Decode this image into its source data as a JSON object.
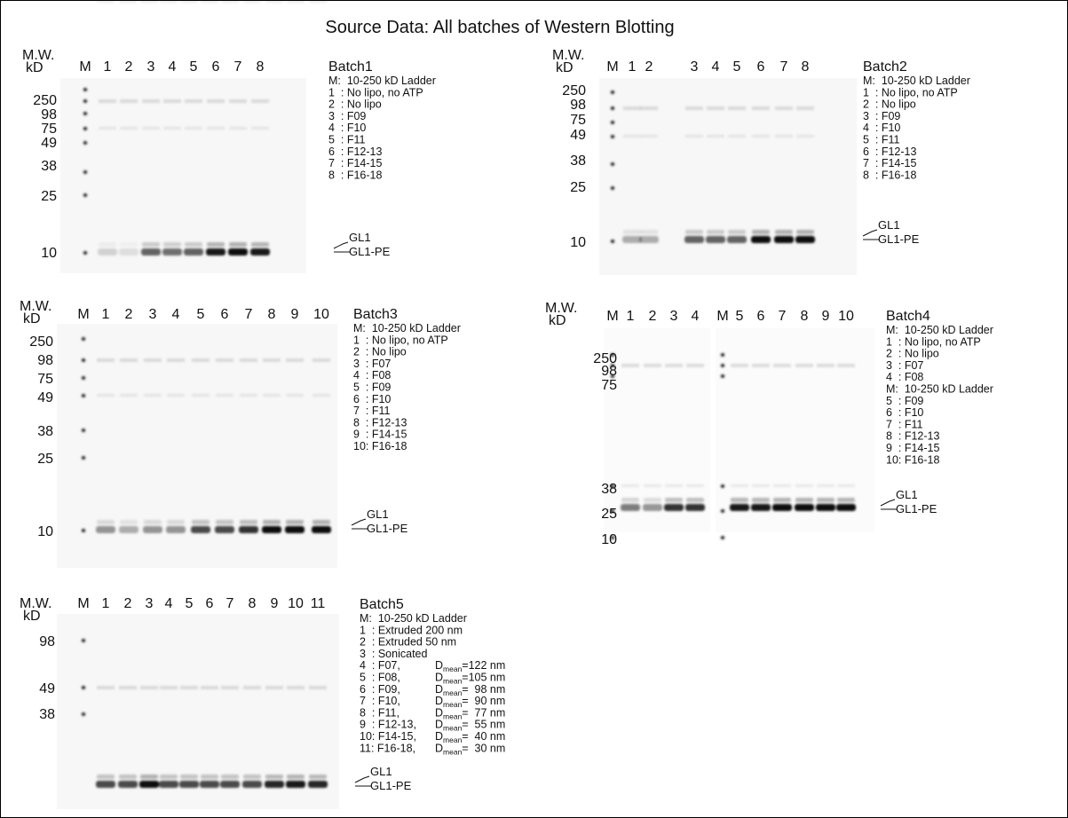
{
  "title": "Source Data: All batches of Western Blotting",
  "panels": [
    {
      "mw_header": [
        "M.W.",
        "kD"
      ],
      "lanes": [
        "M",
        "1",
        "2",
        "3",
        "4",
        "5",
        "6",
        "7",
        "8"
      ],
      "mw_markers": [
        "250",
        "98",
        "75",
        "49",
        "38",
        "25",
        "10"
      ],
      "batch": "Batch1",
      "legend": [
        "M:  10-250 kD Ladder",
        "1  : No lipo, no ATP",
        "2  : No lipo",
        "3  : F09",
        "4  : F10",
        "5  : F11",
        "6  : F12-13",
        "7  : F14-15",
        "8  : F16-18"
      ],
      "bands": [
        "GL1",
        "GL1-PE"
      ]
    },
    {
      "mw_header": [
        "M.W.",
        "kD"
      ],
      "lanes": [
        "M",
        "1",
        "2",
        "3",
        "4",
        "5",
        "6",
        "7",
        "8"
      ],
      "mw_markers": [
        "250",
        "98",
        "75",
        "49",
        "38",
        "25",
        "10"
      ],
      "batch": "Batch2",
      "legend": [
        "M:  10-250 kD Ladder",
        "1  : No lipo, no ATP",
        "2  : No lipo",
        "3  : F09",
        "4  : F10",
        "5  : F11",
        "6  : F12-13",
        "7  : F14-15",
        "8  : F16-18"
      ],
      "bands": [
        "GL1",
        "GL1-PE"
      ]
    },
    {
      "mw_header": [
        "M.W.",
        "kD"
      ],
      "lanes": [
        "M",
        "1",
        "2",
        "3",
        "4",
        "5",
        "6",
        "7",
        "8",
        "9",
        "10"
      ],
      "mw_markers": [
        "250",
        "98",
        "75",
        "49",
        "38",
        "25",
        "10"
      ],
      "batch": "Batch3",
      "legend": [
        "M:  10-250 kD Ladder",
        "1  : No lipo, no ATP",
        "2  : No lipo",
        "3  : F07",
        "4  : F08",
        "5  : F09",
        "6  : F10",
        "7  : F11",
        "8  : F12-13",
        "9  : F14-15",
        "10: F16-18"
      ],
      "bands": [
        "GL1",
        "GL1-PE"
      ]
    },
    {
      "mw_header": [
        "M.W.",
        "kD"
      ],
      "lanes": [
        "M",
        "1",
        "2",
        "3",
        "4",
        "M",
        "5",
        "6",
        "7",
        "8",
        "9",
        "10"
      ],
      "mw_markers": [
        "250",
        "98",
        "75",
        "38",
        "25",
        "10"
      ],
      "batch": "Batch4",
      "legend": [
        "M:  10-250 kD Ladder",
        "1  : No lipo, no ATP",
        "2  : No lipo",
        "3  : F07",
        "4  : F08",
        "M:  10-250 kD Ladder",
        "5  : F09",
        "6  : F10",
        "7  : F11",
        "8  : F12-13",
        "9  : F14-15",
        "10: F16-18"
      ],
      "bands": [
        "GL1",
        "GL1-PE"
      ]
    },
    {
      "mw_header": [
        "M.W.",
        "kD"
      ],
      "lanes": [
        "M",
        "1",
        "2",
        "3",
        "4",
        "5",
        "6",
        "7",
        "8",
        "9",
        "10",
        "11"
      ],
      "mw_markers": [
        "98",
        "49",
        "38"
      ],
      "batch": "Batch5",
      "legend": [
        "M:  10-250 kD Ladder",
        "1  : Extruded 200 nm",
        "2  : Extruded 50 nm",
        "3  : Sonicated",
        {
          "label": "4  : F07,",
          "d": "D",
          "sub": "mean",
          "rest": "=122 nm"
        },
        {
          "label": "5  : F08,",
          "d": "D",
          "sub": "mean",
          "rest": "=105 nm"
        },
        {
          "label": "6  : F09,",
          "d": "D",
          "sub": "mean",
          "rest": "=  98 nm"
        },
        {
          "label": "7  : F10,",
          "d": "D",
          "sub": "mean",
          "rest": "=  90 nm"
        },
        {
          "label": "8  : F11,",
          "d": "D",
          "sub": "mean",
          "rest": "=  77 nm"
        },
        {
          "label": "9  : F12-13,",
          "d": "D",
          "sub": "mean",
          "rest": "=  55 nm"
        },
        {
          "label": "10: F14-15,",
          "d": "D",
          "sub": "mean",
          "rest": "=  40 nm"
        },
        {
          "label": "11: F16-18,",
          "d": "D",
          "sub": "mean",
          "rest": "=  30 nm"
        }
      ],
      "bands": [
        "GL1",
        "GL1-PE"
      ]
    }
  ]
}
